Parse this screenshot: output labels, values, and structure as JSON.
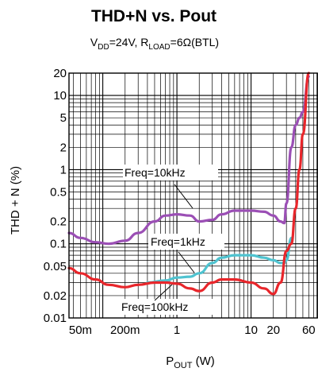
{
  "chart_data": {
    "type": "line",
    "title": "THD+N vs. Pout",
    "subtitle": {
      "vdd_main": "V",
      "vdd_sub": "DD",
      "vdd_rest": "=24V, R",
      "rload_sub": "LOAD",
      "rload_rest": "=6Ω(BTL)"
    },
    "xlabel": {
      "main": "P",
      "sub": "OUT",
      "rest": " (W)"
    },
    "ylabel": "THD + N (%)",
    "x_scale": "log",
    "y_scale": "log",
    "xlim": [
      0.035,
      80
    ],
    "ylim": [
      0.01,
      20
    ],
    "grid": true,
    "x_ticks": [
      {
        "value": 0.05,
        "label": "50m"
      },
      {
        "value": 0.2,
        "label": "200m"
      },
      {
        "value": 1,
        "label": "1"
      },
      {
        "value": 10,
        "label": "10"
      },
      {
        "value": 20,
        "label": "20"
      },
      {
        "value": 60,
        "label": "60"
      }
    ],
    "y_ticks": [
      {
        "value": 0.01,
        "label": "0.01"
      },
      {
        "value": 0.02,
        "label": "0.02"
      },
      {
        "value": 0.05,
        "label": "0.05"
      },
      {
        "value": 0.1,
        "label": "0.1"
      },
      {
        "value": 0.2,
        "label": "0.2"
      },
      {
        "value": 0.5,
        "label": "0.5"
      },
      {
        "value": 1,
        "label": "1"
      },
      {
        "value": 2,
        "label": "2"
      },
      {
        "value": 5,
        "label": "5"
      },
      {
        "value": 10,
        "label": "10"
      },
      {
        "value": 20,
        "label": "20"
      }
    ],
    "series": [
      {
        "name": "Freq=10kHz",
        "color": "#9b4fb5",
        "points": [
          [
            0.035,
            0.14
          ],
          [
            0.05,
            0.12
          ],
          [
            0.08,
            0.105
          ],
          [
            0.12,
            0.1
          ],
          [
            0.2,
            0.11
          ],
          [
            0.3,
            0.14
          ],
          [
            0.5,
            0.2
          ],
          [
            0.7,
            0.24
          ],
          [
            1.0,
            0.25
          ],
          [
            1.5,
            0.24
          ],
          [
            2.0,
            0.2
          ],
          [
            3.0,
            0.21
          ],
          [
            4.0,
            0.25
          ],
          [
            6.0,
            0.28
          ],
          [
            10,
            0.28
          ],
          [
            15,
            0.27
          ],
          [
            20,
            0.24
          ],
          [
            25,
            0.2
          ],
          [
            28,
            0.19
          ],
          [
            30,
            0.35
          ],
          [
            35,
            2.0
          ],
          [
            40,
            4.0
          ],
          [
            45,
            5.0
          ],
          [
            50,
            6.0
          ],
          [
            60,
            18
          ]
        ]
      },
      {
        "name": "Freq=1kHz",
        "color": "#4fc3d0",
        "points": [
          [
            0.4,
            0.03
          ],
          [
            0.7,
            0.032
          ],
          [
            1.0,
            0.035
          ],
          [
            1.5,
            0.036
          ],
          [
            2.0,
            0.04
          ],
          [
            3.0,
            0.055
          ],
          [
            4.0,
            0.065
          ],
          [
            6.0,
            0.07
          ],
          [
            10,
            0.07
          ],
          [
            15,
            0.065
          ],
          [
            20,
            0.06
          ],
          [
            25,
            0.055
          ],
          [
            28,
            0.055
          ],
          [
            30,
            0.06
          ],
          [
            35,
            0.12
          ]
        ]
      },
      {
        "name": "Freq=100kHz",
        "color": "#e8262b",
        "points": [
          [
            0.035,
            0.047
          ],
          [
            0.05,
            0.04
          ],
          [
            0.08,
            0.033
          ],
          [
            0.12,
            0.028
          ],
          [
            0.2,
            0.026
          ],
          [
            0.3,
            0.028
          ],
          [
            0.5,
            0.03
          ],
          [
            0.7,
            0.03
          ],
          [
            1.0,
            0.029
          ],
          [
            1.5,
            0.025
          ],
          [
            2.0,
            0.023
          ],
          [
            3.0,
            0.03
          ],
          [
            4.0,
            0.033
          ],
          [
            6.0,
            0.033
          ],
          [
            10,
            0.03
          ],
          [
            15,
            0.025
          ],
          [
            20,
            0.021
          ],
          [
            25,
            0.03
          ],
          [
            30,
            0.08
          ],
          [
            35,
            0.1
          ],
          [
            40,
            0.3
          ],
          [
            45,
            1.0
          ],
          [
            50,
            3.0
          ],
          [
            60,
            20
          ]
        ]
      }
    ],
    "annotations": [
      {
        "text": "Freq=10kHz",
        "series": "Freq=10kHz"
      },
      {
        "text": "Freq=1kHz",
        "series": "Freq=1kHz"
      },
      {
        "text": "Freq=100kHz",
        "series": "Freq=100kHz"
      }
    ]
  }
}
